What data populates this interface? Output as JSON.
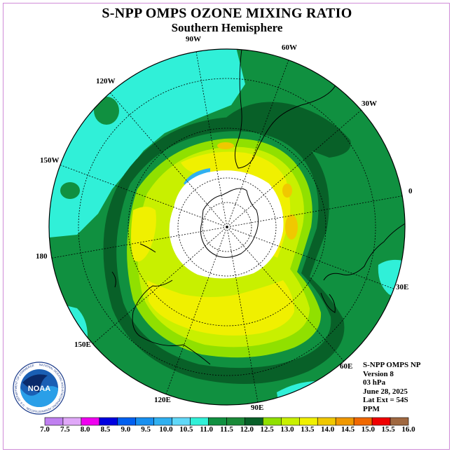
{
  "title": "S-NPP OMPS OZONE MIXING RATIO",
  "subtitle": "Southern Hemisphere",
  "longitude_labels": [
    "90W",
    "60W",
    "30W",
    "0",
    "30E",
    "60E",
    "90E",
    "120E",
    "150E",
    "180",
    "150W",
    "120W"
  ],
  "info": {
    "instrument": "S-NPP OMPS NP",
    "version": "Version 8",
    "pressure": "03 hPa",
    "date": "June 28, 2025",
    "lat_ext": "Lat Ext = 54S",
    "units": "PPM"
  },
  "logo": {
    "text": "NOAA",
    "ring_text": "NATIONAL OCEANIC AND ATMOSPHERIC ADMINISTRATION · U.S. DEPARTMENT OF COMMERCE"
  },
  "colorbar": {
    "ticks": [
      "7.0",
      "7.5",
      "8.0",
      "8.5",
      "9.0",
      "9.5",
      "10.0",
      "10.5",
      "11.0",
      "11.5",
      "12.0",
      "12.5",
      "13.0",
      "13.5",
      "14.0",
      "14.5",
      "15.0",
      "15.5",
      "16.0"
    ],
    "colors": [
      "#c080f0",
      "#e0a8f8",
      "#f000f0",
      "#0000e0",
      "#0060f0",
      "#1890f0",
      "#30b0f0",
      "#60d8f8",
      "#30f0d8",
      "#109040",
      "#1a8a38",
      "#086028",
      "#90e000",
      "#c8f000",
      "#f0f000",
      "#f0c800",
      "#f09800",
      "#f06800",
      "#f00000",
      "#a06840"
    ]
  },
  "map_colors": {
    "c11": "#30f0d8",
    "c115": "#109040",
    "c12": "#086028",
    "c125": "#90e000",
    "c13": "#c8f000",
    "c135": "#f0f000",
    "c14": "#f0c800",
    "c145": "#f09800",
    "c105": "#30b0f0",
    "nodata": "#ffffff"
  }
}
